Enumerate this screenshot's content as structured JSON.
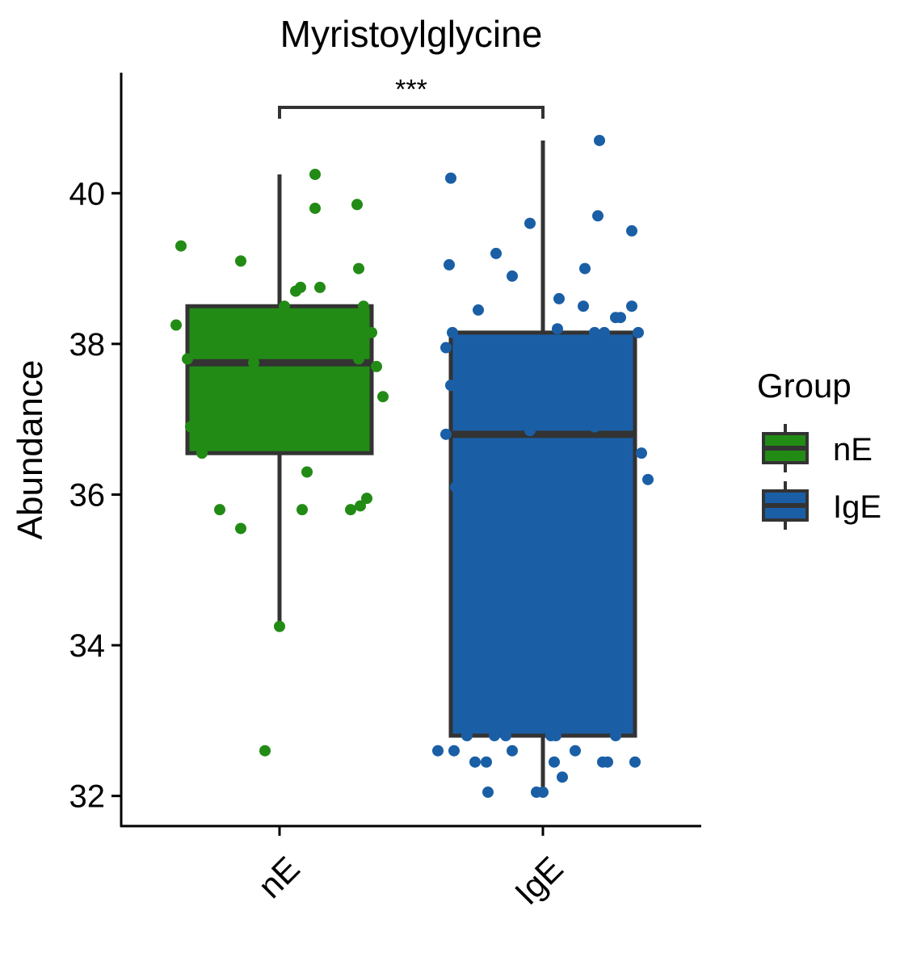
{
  "chart_data": {
    "type": "box",
    "title": "Myristoylglycine",
    "ylabel": "Abundance",
    "xlabel": "",
    "categories": [
      "nE",
      "IgE"
    ],
    "ylim": [
      31.6,
      41.6
    ],
    "yticks": [
      32,
      34,
      36,
      38,
      40
    ],
    "grid": false,
    "legend": {
      "title": "Group",
      "position": "right",
      "entries": [
        "nE",
        "IgE"
      ]
    },
    "significance": {
      "label": "***",
      "between": [
        "nE",
        "IgE"
      ]
    },
    "series": [
      {
        "name": "nE",
        "color": "#228B15",
        "box": {
          "q1": 36.55,
          "median": 37.75,
          "q3": 38.5,
          "whisker_low": 34.25,
          "whisker_high": 40.25
        },
        "points": [
          {
            "j": -0.61,
            "y": 39.3
          },
          {
            "j": -0.64,
            "y": 38.25
          },
          {
            "j": -0.57,
            "y": 37.8
          },
          {
            "j": -0.55,
            "y": 36.9
          },
          {
            "j": -0.48,
            "y": 36.55
          },
          {
            "j": -0.37,
            "y": 35.8
          },
          {
            "j": -0.24,
            "y": 35.55
          },
          {
            "j": -0.24,
            "y": 39.1
          },
          {
            "j": -0.16,
            "y": 37.75
          },
          {
            "j": 0.03,
            "y": 38.5
          },
          {
            "j": 0.1,
            "y": 38.7
          },
          {
            "j": 0.13,
            "y": 38.75
          },
          {
            "j": 0.25,
            "y": 38.75
          },
          {
            "j": 0.22,
            "y": 39.8
          },
          {
            "j": 0.22,
            "y": 40.25
          },
          {
            "j": 0.17,
            "y": 36.3
          },
          {
            "j": 0.14,
            "y": 35.8
          },
          {
            "j": 0.48,
            "y": 39.85
          },
          {
            "j": 0.49,
            "y": 39.0
          },
          {
            "j": 0.52,
            "y": 38.5
          },
          {
            "j": 0.57,
            "y": 38.15
          },
          {
            "j": 0.49,
            "y": 37.8
          },
          {
            "j": 0.6,
            "y": 37.7
          },
          {
            "j": 0.64,
            "y": 37.3
          },
          {
            "j": 0.54,
            "y": 35.95
          },
          {
            "j": 0.5,
            "y": 35.85
          },
          {
            "j": 0.44,
            "y": 35.8
          },
          {
            "j": -0.09,
            "y": 32.6
          },
          {
            "j": 0.0,
            "y": 34.25
          }
        ]
      },
      {
        "name": "IgE",
        "color": "#1A5FA6",
        "box": {
          "q1": 32.8,
          "median": 36.8,
          "q3": 38.15,
          "whisker_low": 32.05,
          "whisker_high": 40.7
        },
        "points": [
          {
            "j": -0.57,
            "y": 40.2
          },
          {
            "j": -0.58,
            "y": 39.05
          },
          {
            "j": -0.56,
            "y": 38.15
          },
          {
            "j": -0.6,
            "y": 37.95
          },
          {
            "j": -0.57,
            "y": 37.45
          },
          {
            "j": -0.6,
            "y": 36.8
          },
          {
            "j": -0.54,
            "y": 36.1
          },
          {
            "j": -0.4,
            "y": 38.45
          },
          {
            "j": -0.29,
            "y": 39.2
          },
          {
            "j": -0.19,
            "y": 38.9
          },
          {
            "j": -0.08,
            "y": 39.6
          },
          {
            "j": -0.08,
            "y": 36.85
          },
          {
            "j": 0.1,
            "y": 38.6
          },
          {
            "j": 0.09,
            "y": 38.2
          },
          {
            "j": 0.26,
            "y": 39.0
          },
          {
            "j": 0.25,
            "y": 38.5
          },
          {
            "j": 0.32,
            "y": 38.15
          },
          {
            "j": 0.38,
            "y": 38.15
          },
          {
            "j": 0.34,
            "y": 39.7
          },
          {
            "j": 0.35,
            "y": 40.7
          },
          {
            "j": 0.45,
            "y": 38.35
          },
          {
            "j": 0.48,
            "y": 38.35
          },
          {
            "j": 0.55,
            "y": 38.5
          },
          {
            "j": 0.59,
            "y": 38.15
          },
          {
            "j": 0.55,
            "y": 39.5
          },
          {
            "j": 0.32,
            "y": 36.9
          },
          {
            "j": 0.61,
            "y": 36.55
          },
          {
            "j": 0.65,
            "y": 36.2
          },
          {
            "j": -0.65,
            "y": 32.6
          },
          {
            "j": -0.55,
            "y": 32.6
          },
          {
            "j": -0.47,
            "y": 32.8
          },
          {
            "j": -0.42,
            "y": 32.45
          },
          {
            "j": -0.35,
            "y": 32.45
          },
          {
            "j": -0.3,
            "y": 32.8
          },
          {
            "j": -0.34,
            "y": 32.05
          },
          {
            "j": -0.23,
            "y": 32.8
          },
          {
            "j": -0.19,
            "y": 32.6
          },
          {
            "j": -0.04,
            "y": 32.05
          },
          {
            "j": 0.0,
            "y": 32.05
          },
          {
            "j": 0.05,
            "y": 32.8
          },
          {
            "j": 0.08,
            "y": 32.8
          },
          {
            "j": 0.07,
            "y": 32.45
          },
          {
            "j": 0.12,
            "y": 32.25
          },
          {
            "j": 0.2,
            "y": 32.6
          },
          {
            "j": 0.37,
            "y": 32.45
          },
          {
            "j": 0.4,
            "y": 32.45
          },
          {
            "j": 0.45,
            "y": 32.8
          },
          {
            "j": 0.57,
            "y": 32.45
          }
        ]
      }
    ]
  }
}
